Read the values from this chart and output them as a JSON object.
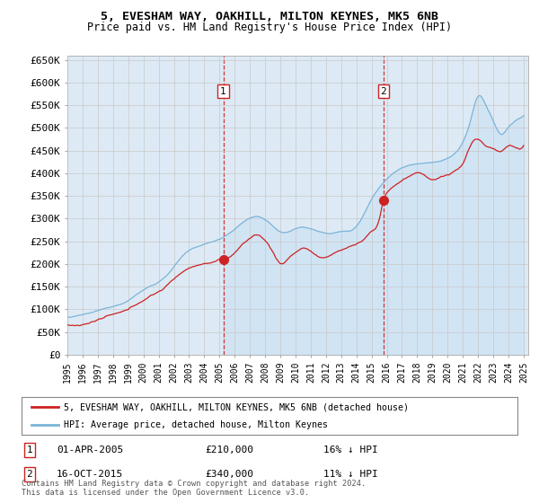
{
  "title1": "5, EVESHAM WAY, OAKHILL, MILTON KEYNES, MK5 6NB",
  "title2": "Price paid vs. HM Land Registry's House Price Index (HPI)",
  "ylim": [
    0,
    660000
  ],
  "yticks": [
    0,
    50000,
    100000,
    150000,
    200000,
    250000,
    300000,
    350000,
    400000,
    450000,
    500000,
    550000,
    600000,
    650000
  ],
  "ytick_labels": [
    "£0",
    "£50K",
    "£100K",
    "£150K",
    "£200K",
    "£250K",
    "£300K",
    "£350K",
    "£400K",
    "£450K",
    "£500K",
    "£550K",
    "£600K",
    "£650K"
  ],
  "hpi_color": "#7ab4d8",
  "price_color": "#cc2222",
  "fill_color": "#d0e4f4",
  "sale1_date": 2005.25,
  "sale1_price": 210000,
  "sale2_date": 2015.79,
  "sale2_price": 340000,
  "legend_label1": "5, EVESHAM WAY, OAKHILL, MILTON KEYNES, MK5 6NB (detached house)",
  "legend_label2": "HPI: Average price, detached house, Milton Keynes",
  "annotation1_date": "01-APR-2005",
  "annotation1_price": "£210,000",
  "annotation1_hpi": "16% ↓ HPI",
  "annotation2_date": "16-OCT-2015",
  "annotation2_price": "£340,000",
  "annotation2_hpi": "11% ↓ HPI",
  "footnote": "Contains HM Land Registry data © Crown copyright and database right 2024.\nThis data is licensed under the Open Government Licence v3.0.",
  "background_color": "#ddeaf5",
  "plot_bg": "#ffffff",
  "grid_color": "#c8c8c8",
  "xlim_start": 1995,
  "xlim_end": 2025.3
}
